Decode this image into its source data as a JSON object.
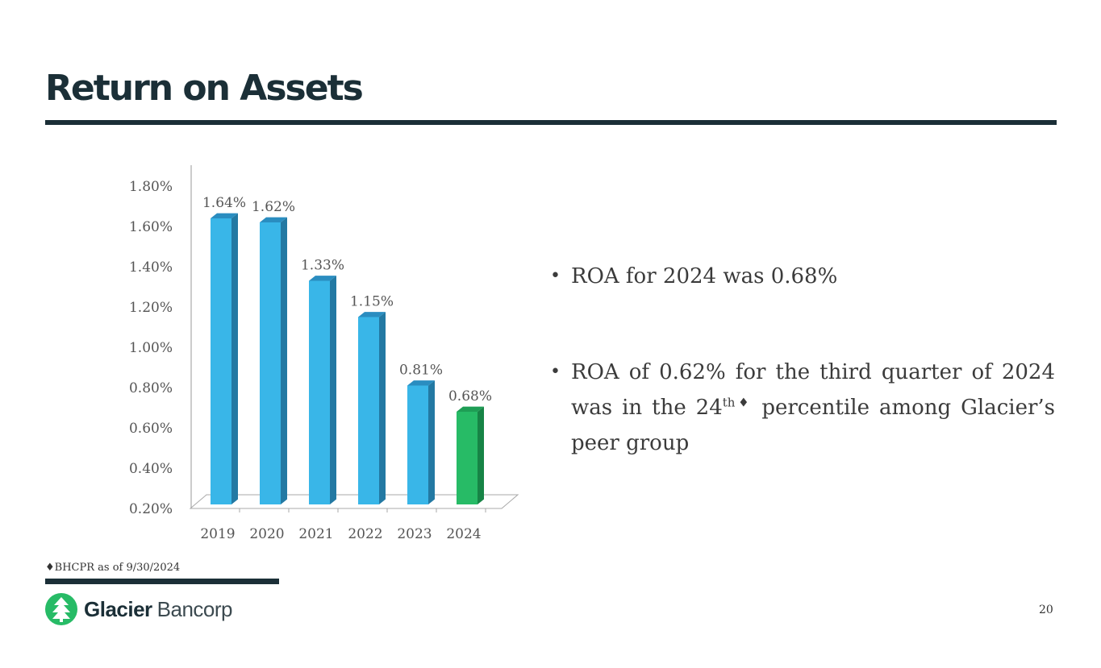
{
  "slide": {
    "title": "Return on Assets",
    "page_number": "20",
    "footnote": "♦BHCPR as of 9/30/2024",
    "brand": {
      "name_bold": "Glacier",
      "name_light": "Bancorp"
    }
  },
  "bullets": {
    "b1": "ROA for 2024 was 0.68%",
    "b2_part1": "ROA of 0.62% for the third quarter of 2024 was in the 24",
    "b2_sup": "th♦",
    "b2_part2": " percentile among Glacier’s peer group"
  },
  "colors": {
    "bar": "#39b6e8",
    "bar_side": "#2379a3",
    "bar_top": "#2a8dc0",
    "highlight": "#27bb66",
    "highlight_side": "#178446",
    "highlight_top": "#1e9e55",
    "dark": "#1b2f37"
  },
  "chart_data": {
    "type": "bar",
    "title": "",
    "xlabel": "",
    "ylabel": "",
    "categories": [
      "2019",
      "2020",
      "2021",
      "2022",
      "2023",
      "2024"
    ],
    "values": [
      1.64,
      1.62,
      1.33,
      1.15,
      0.81,
      0.68
    ],
    "data_labels": [
      "1.64%",
      "1.62%",
      "1.33%",
      "1.15%",
      "0.81%",
      "0.68%"
    ],
    "highlight_index": 5,
    "ylim": [
      0.2,
      1.8
    ],
    "yticks": [
      0.2,
      0.4,
      0.6,
      0.8,
      1.0,
      1.2,
      1.4,
      1.6,
      1.8
    ],
    "ytick_labels": [
      "0.20%",
      "0.40%",
      "0.60%",
      "0.80%",
      "1.00%",
      "1.20%",
      "1.40%",
      "1.60%",
      "1.80%"
    ],
    "grid": false
  }
}
